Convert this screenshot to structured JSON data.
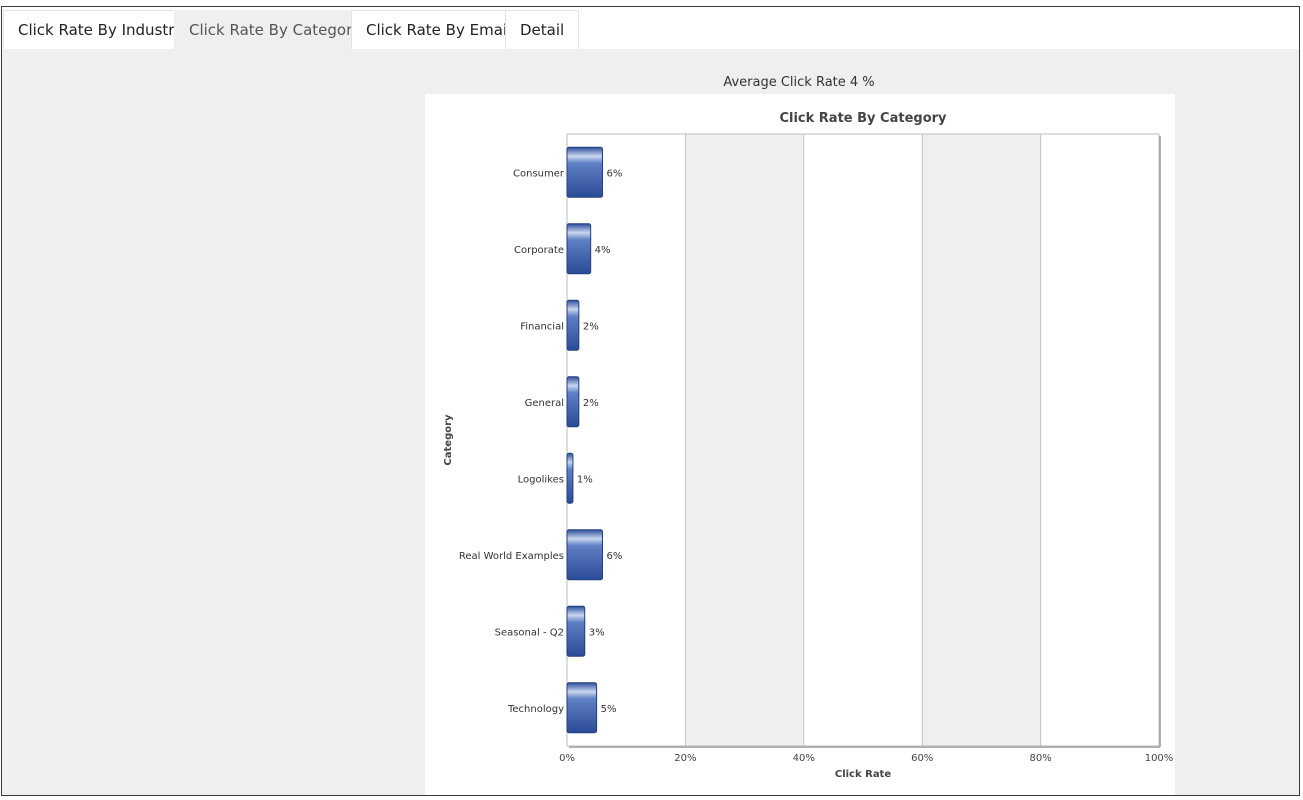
{
  "tabs": [
    {
      "label": "Click Rate By Industry",
      "active": false
    },
    {
      "label": "Click Rate By Category",
      "active": true
    },
    {
      "label": "Click Rate By Email",
      "active": false
    },
    {
      "label": "Detail",
      "active": false
    }
  ],
  "summary": {
    "average_label": "Average Click Rate 4 %"
  },
  "chart_data": {
    "type": "bar",
    "orientation": "horizontal",
    "title": "Click Rate By Category",
    "xlabel": "Click Rate",
    "ylabel": "Category",
    "xlim": [
      0,
      100
    ],
    "x_ticks": [
      "0%",
      "20%",
      "40%",
      "60%",
      "80%",
      "100%"
    ],
    "categories": [
      "Consumer",
      "Corporate",
      "Financial",
      "General",
      "Logolikes",
      "Real World Examples",
      "Seasonal - Q2",
      "Technology"
    ],
    "values": [
      6,
      4,
      2,
      2,
      1,
      6,
      3,
      5
    ],
    "data_labels": [
      "6%",
      "4%",
      "2%",
      "2%",
      "1%",
      "6%",
      "3%",
      "5%"
    ],
    "grid": true,
    "legend": "none",
    "bar_color": "#3f63b0"
  }
}
